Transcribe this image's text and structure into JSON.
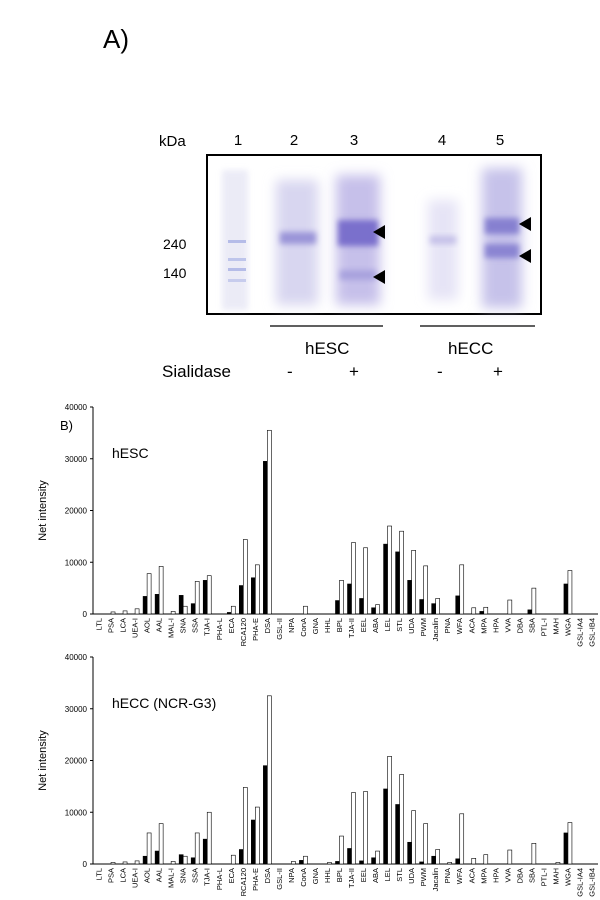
{
  "panel_a": {
    "label": "A)",
    "kda_label": "kDa",
    "lanes": [
      "1",
      "2",
      "3",
      "4",
      "5"
    ],
    "markers": [
      "240",
      "140"
    ],
    "groups": [
      "hESC",
      "hECC"
    ],
    "sialidase_label": "Sialidase",
    "sialidase_signs": [
      "-",
      "+",
      "-",
      "+"
    ]
  },
  "panel_b": {
    "label": "B)"
  },
  "chart_data": [
    {
      "type": "bar",
      "title": "hESC",
      "ylabel": "Net intensity",
      "ylim": [
        0,
        40000
      ],
      "yticks": [
        "0",
        "10000",
        "20000",
        "30000",
        "40000"
      ],
      "grid": false,
      "categories": [
        "LTL",
        "PSA",
        "LCA",
        "UEA-I",
        "AOL",
        "AAL",
        "MAL-I",
        "SNA",
        "SSA",
        "TJA-I",
        "PHA-L",
        "ECA",
        "RCA120",
        "PHA-E",
        "DSA",
        "GSL-II",
        "NPA",
        "ConA",
        "GNA",
        "HHL",
        "BPL",
        "TJA-II",
        "EEL",
        "ABA",
        "LEL",
        "STL",
        "UDA",
        "PWM",
        "Jacalin",
        "PNA",
        "WFA",
        "ACA",
        "MPA",
        "HPA",
        "VVA",
        "DBA",
        "SBA",
        "PTL-I",
        "MAH",
        "WGA",
        "GSL-IA4",
        "GSL-IB4"
      ],
      "series": [
        {
          "fill": "#000000",
          "values": [
            0,
            0,
            0,
            0,
            3400,
            3800,
            0,
            3600,
            2000,
            6500,
            0,
            300,
            5500,
            7000,
            29500,
            0,
            0,
            0,
            0,
            0,
            2600,
            5800,
            3000,
            1200,
            13500,
            12000,
            6500,
            2800,
            2000,
            0,
            3500,
            0,
            500,
            0,
            0,
            0,
            800,
            0,
            0,
            5800,
            0,
            0
          ]
        },
        {
          "fill": "#ffffff",
          "values": [
            0,
            400,
            600,
            1000,
            7800,
            9200,
            500,
            1500,
            6300,
            7400,
            0,
            1500,
            14400,
            9500,
            35500,
            0,
            0,
            1500,
            0,
            0,
            6500,
            13800,
            12800,
            1800,
            17000,
            16000,
            12300,
            9300,
            3000,
            0,
            9500,
            1200,
            1300,
            0,
            2700,
            0,
            5000,
            0,
            0,
            8400,
            0,
            0
          ]
        }
      ]
    },
    {
      "type": "bar",
      "title": "hECC (NCR-G3)",
      "ylabel": "Net intensity",
      "ylim": [
        0,
        40000
      ],
      "yticks": [
        "0",
        "10000",
        "20000",
        "30000",
        "40000"
      ],
      "grid": false,
      "categories": [
        "LTL",
        "PSA",
        "LCA",
        "UEA-I",
        "AOL",
        "AAL",
        "MAL-I",
        "SNA",
        "SSA",
        "TJA-I",
        "PHA-L",
        "ECA",
        "RCA120",
        "PHA-E",
        "DSA",
        "GSL-II",
        "NPA",
        "ConA",
        "GNA",
        "HHL",
        "BPL",
        "TJA-II",
        "EEL",
        "ABA",
        "LEL",
        "STL",
        "UDA",
        "PWM",
        "Jacalin",
        "PNA",
        "WFA",
        "ACA",
        "MPA",
        "HPA",
        "VVA",
        "DBA",
        "SBA",
        "PTL-I",
        "MAH",
        "WGA",
        "GSL-IA4",
        "GSL-IB4"
      ],
      "series": [
        {
          "fill": "#000000",
          "values": [
            0,
            0,
            0,
            0,
            1500,
            2500,
            0,
            1800,
            1200,
            4800,
            0,
            0,
            2800,
            8500,
            19000,
            0,
            0,
            700,
            0,
            0,
            500,
            3000,
            600,
            1200,
            14500,
            11500,
            4200,
            400,
            1500,
            0,
            1000,
            0,
            0,
            0,
            0,
            0,
            0,
            0,
            0,
            6000,
            0,
            0
          ]
        },
        {
          "fill": "#ffffff",
          "values": [
            0,
            300,
            400,
            600,
            6000,
            7800,
            500,
            1500,
            6000,
            10000,
            0,
            1700,
            14800,
            11000,
            32500,
            0,
            500,
            1500,
            0,
            300,
            5400,
            13800,
            14000,
            2500,
            20800,
            17300,
            10300,
            7800,
            2800,
            300,
            9700,
            1100,
            1800,
            0,
            2700,
            0,
            4000,
            0,
            300,
            8000,
            0,
            0
          ]
        }
      ]
    }
  ]
}
